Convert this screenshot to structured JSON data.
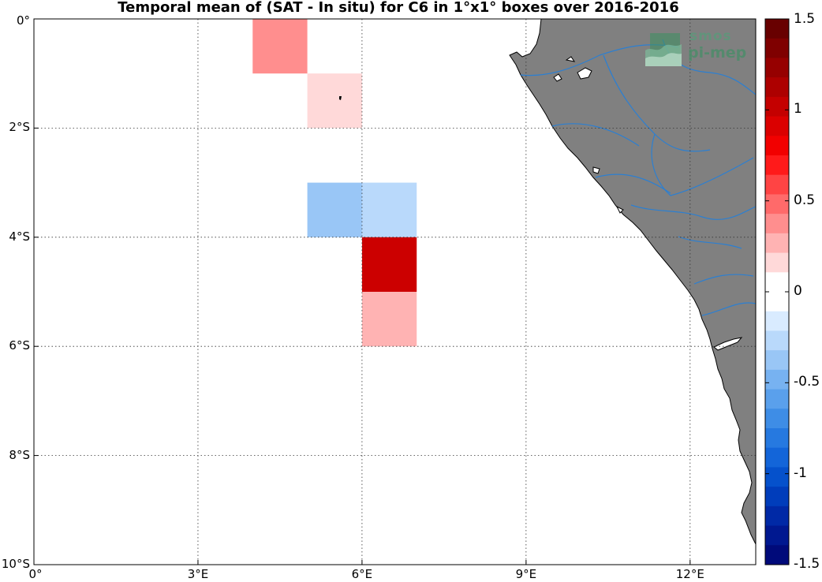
{
  "title": "Temporal mean of (SAT - In situ) for C6 in 1°x1° boxes over 2016-2016",
  "logo": {
    "line1": "smos",
    "line2": "pi-mep",
    "icon": "smos-pimep-logo"
  },
  "axes": {
    "lon_range": [
      0,
      13.2
    ],
    "lat_range": [
      -10,
      0
    ],
    "x_ticks": [
      {
        "value": 0,
        "label": "0°"
      },
      {
        "value": 3,
        "label": "3°E"
      },
      {
        "value": 6,
        "label": "6°E"
      },
      {
        "value": 9,
        "label": "9°E"
      },
      {
        "value": 12,
        "label": "12°E"
      }
    ],
    "y_ticks": [
      {
        "value": 0,
        "label": "0°"
      },
      {
        "value": -2,
        "label": "2°S"
      },
      {
        "value": -4,
        "label": "4°S"
      },
      {
        "value": -6,
        "label": "6°S"
      },
      {
        "value": -8,
        "label": "8°S"
      },
      {
        "value": -10,
        "label": "10°S"
      }
    ],
    "grid": "dotted"
  },
  "colorbar": {
    "range": [
      -1.5,
      1.5
    ],
    "ticks": [
      {
        "value": 1.5,
        "label": "1.5"
      },
      {
        "value": 1,
        "label": "1"
      },
      {
        "value": 0.5,
        "label": "0.5"
      },
      {
        "value": 0,
        "label": "0"
      },
      {
        "value": -0.5,
        "label": "-0.5"
      },
      {
        "value": -1,
        "label": "-1"
      },
      {
        "value": -1.5,
        "label": "-1.5"
      }
    ],
    "colors_top_to_bottom": [
      "#680000",
      "#7f0000",
      "#960000",
      "#ad0000",
      "#c40000",
      "#db0000",
      "#f20000",
      "#ff1a1a",
      "#ff4444",
      "#ff6a6a",
      "#ff8e8e",
      "#ffb3b3",
      "#ffd9d9",
      "#ffffff",
      "#ffffff",
      "#d9ebff",
      "#b9d9fb",
      "#99c6f6",
      "#77b2f1",
      "#5aa0ec",
      "#3e8de6",
      "#2679e0",
      "#1365d9",
      "#0551cc",
      "#003dbb",
      "#0029a6",
      "#001890",
      "#000a7a"
    ]
  },
  "land_color": "#808080",
  "river_color": "#2c7fd1",
  "chart_data": {
    "type": "heatmap",
    "title": "Temporal mean of (SAT - In situ) for C6 in 1°x1° boxes over 2016-2016",
    "units": "",
    "cells": [
      {
        "lon": [
          4,
          5
        ],
        "lat": [
          -1,
          0
        ],
        "value": 0.35,
        "color": "#ff8e8e"
      },
      {
        "lon": [
          5,
          6
        ],
        "lat": [
          -2,
          -1
        ],
        "value": 0.1,
        "color": "#ffd9d9"
      },
      {
        "lon": [
          5,
          6
        ],
        "lat": [
          -4,
          -3
        ],
        "value": -0.35,
        "color": "#99c6f6"
      },
      {
        "lon": [
          6,
          7
        ],
        "lat": [
          -4,
          -3
        ],
        "value": -0.2,
        "color": "#b9d9fb"
      },
      {
        "lon": [
          6,
          7
        ],
        "lat": [
          -5,
          -4
        ],
        "value": 1.05,
        "color": "#cc0000"
      },
      {
        "lon": [
          6,
          7
        ],
        "lat": [
          -6,
          -5
        ],
        "value": 0.25,
        "color": "#ffb3b3"
      }
    ]
  }
}
